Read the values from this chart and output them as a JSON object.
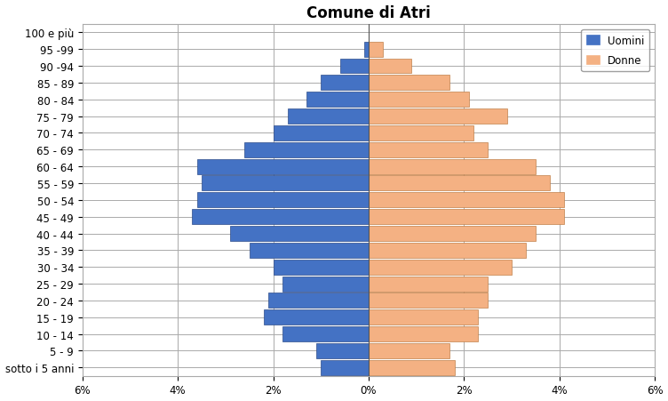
{
  "title": "Comune di Atri",
  "age_groups": [
    "sotto i 5 anni",
    "5 - 9",
    "10 - 14",
    "15 - 19",
    "20 - 24",
    "25 - 29",
    "30 - 34",
    "35 - 39",
    "40 - 44",
    "45 - 49",
    "50 - 54",
    "55 - 59",
    "60 - 64",
    "65 - 69",
    "70 - 74",
    "75 - 79",
    "80 - 84",
    "85 - 89",
    "90 -94",
    "95 -99",
    "100 e più"
  ],
  "uomini": [
    1.0,
    1.1,
    1.8,
    2.2,
    2.1,
    1.8,
    2.0,
    2.5,
    2.9,
    3.7,
    3.6,
    3.5,
    3.6,
    2.6,
    2.0,
    1.7,
    1.3,
    1.0,
    0.6,
    0.1,
    0.0
  ],
  "donne": [
    1.8,
    1.7,
    2.3,
    2.3,
    2.5,
    2.5,
    3.0,
    3.3,
    3.5,
    4.1,
    4.1,
    3.8,
    3.5,
    2.5,
    2.2,
    2.9,
    2.1,
    1.7,
    0.9,
    0.3,
    0.0
  ],
  "uomini_color": "#4472C4",
  "donne_color": "#F4B183",
  "uomini_edge": "#2E4D8A",
  "donne_edge": "#C0804A",
  "xlim": 6.0,
  "xlabel_ticks": [
    -6,
    -4,
    -2,
    0,
    2,
    4,
    6
  ],
  "xlabel_labels": [
    "6%",
    "4%",
    "2%",
    "0%",
    "2%",
    "4%",
    "6%"
  ],
  "background_color": "#FFFFFF",
  "grid_color": "#AAAAAA",
  "legend_uomini": "Uomini",
  "legend_donne": "Donne",
  "title_fontsize": 12,
  "tick_fontsize": 8.5,
  "bar_height": 0.9
}
